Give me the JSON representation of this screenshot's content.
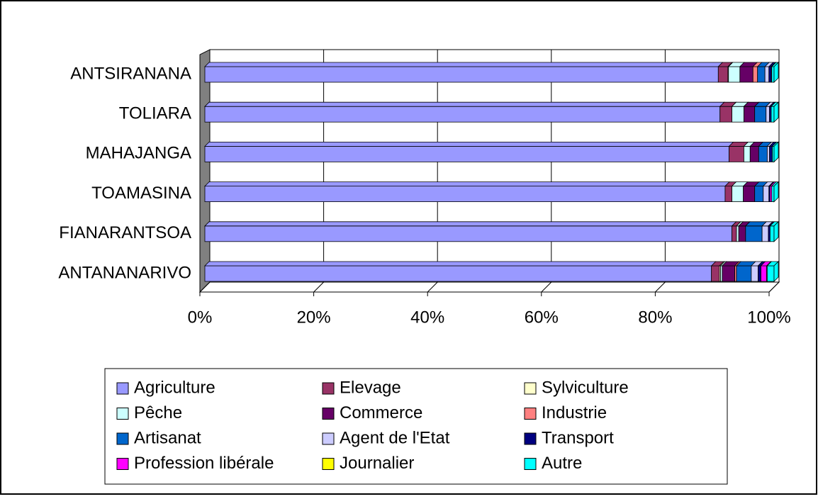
{
  "chart_data": {
    "type": "stacked_bar_horizontal",
    "categories": [
      "ANTANANARIVO",
      "FIANARANTSOA",
      "TOAMASINA",
      "MAHAJANGA",
      "TOLIARA",
      "ANTSIRANANA"
    ],
    "series": [
      {
        "name": "Agriculture",
        "color": "#9999ff",
        "values": [
          89,
          92.6,
          91.4,
          92.1,
          90.5,
          90.2
        ]
      },
      {
        "name": "Elevage",
        "color": "#993366",
        "values": [
          1.4,
          0.8,
          1.2,
          2.6,
          2.1,
          1.7
        ]
      },
      {
        "name": "Sylviculture",
        "color": "#ffffcc",
        "values": [
          0.2,
          0,
          0,
          0,
          0,
          0.1
        ]
      },
      {
        "name": "Pêche",
        "color": "#ccffff",
        "values": [
          0.3,
          0.4,
          2,
          1.1,
          2.1,
          2
        ]
      },
      {
        "name": "Commerce",
        "color": "#660066",
        "values": [
          2.2,
          1.2,
          2,
          1.5,
          1.9,
          2.3
        ]
      },
      {
        "name": "Industrie",
        "color": "#ff8080",
        "values": [
          0.3,
          0,
          0,
          0,
          0,
          0.8
        ]
      },
      {
        "name": "Artisanat",
        "color": "#0066cc",
        "values": [
          2.6,
          2.9,
          1.5,
          1.5,
          2,
          1.3
        ]
      },
      {
        "name": "Agent de l'Etat",
        "color": "#ccccff",
        "values": [
          1.2,
          1.1,
          1,
          0.4,
          0.6,
          0.7
        ]
      },
      {
        "name": "Transport",
        "color": "#000080",
        "values": [
          0.5,
          0.3,
          0.2,
          0.5,
          0.3,
          0.4
        ]
      },
      {
        "name": "Profession libérale",
        "color": "#ff00ff",
        "values": [
          1,
          0,
          0.3,
          0,
          0,
          0.1
        ]
      },
      {
        "name": "Journalier",
        "color": "#ffff00",
        "values": [
          0.1,
          0,
          0,
          0,
          0,
          0
        ]
      },
      {
        "name": "Autre",
        "color": "#00ffff",
        "values": [
          1.2,
          0.7,
          0.4,
          0.3,
          0.5,
          0.4
        ]
      }
    ],
    "xlim": [
      0,
      100
    ],
    "xticks": [
      {
        "value": 0,
        "label": "0%"
      },
      {
        "value": 20,
        "label": "20%"
      },
      {
        "value": 40,
        "label": "40%"
      },
      {
        "value": 60,
        "label": "60%"
      },
      {
        "value": 80,
        "label": "80%"
      },
      {
        "value": 100,
        "label": "100%"
      }
    ],
    "grid": true,
    "legend": "bottom"
  }
}
